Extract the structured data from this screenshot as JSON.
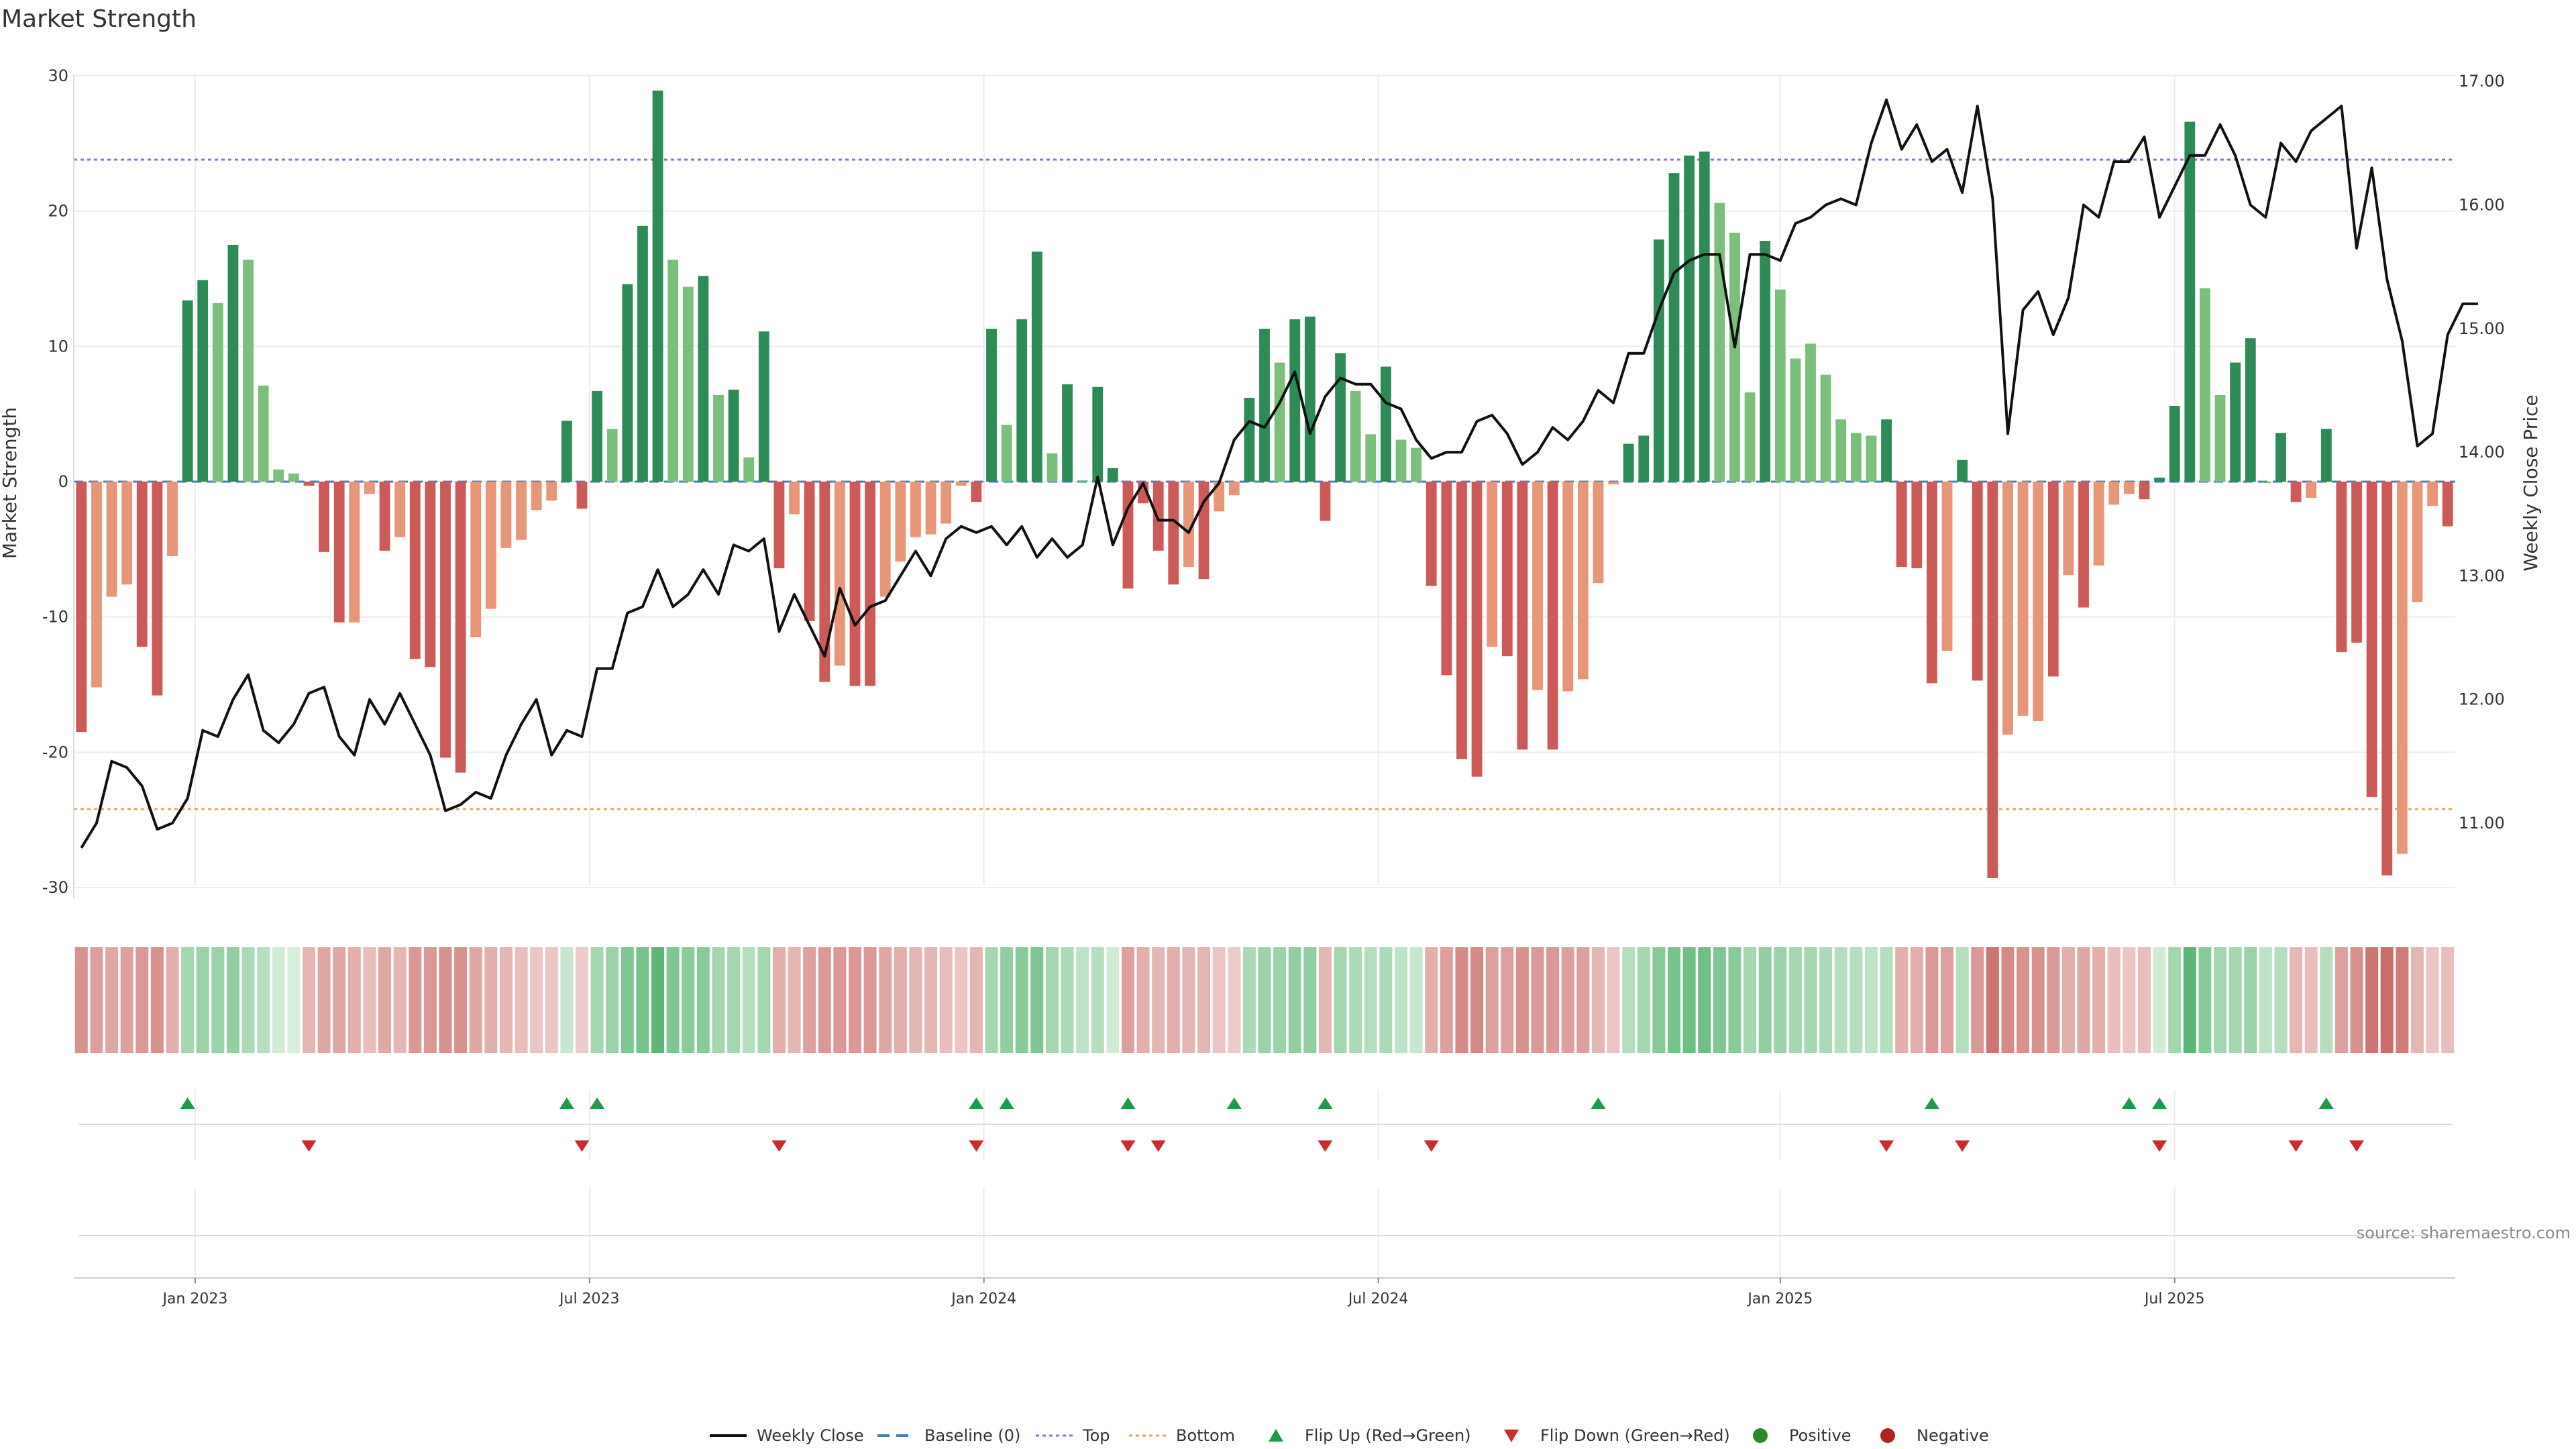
{
  "chart_data": {
    "type": "bar",
    "title": "Market Strength",
    "ylabel": "Market Strength",
    "y2label": "Weekly Close Price",
    "ylim": [
      -31,
      31
    ],
    "y2lim": [
      10.5,
      17.1
    ],
    "yticks": [
      30,
      20,
      10,
      0,
      -10,
      -20,
      -30
    ],
    "y2ticks": [
      "17.00",
      "16.00",
      "15.00",
      "14.00",
      "13.00",
      "12.00",
      "11.00"
    ],
    "y2tick_values": [
      17,
      16,
      15,
      14,
      13,
      12,
      11
    ],
    "xtick_labels": [
      "Jan 2023",
      "Jul 2023",
      "Jan 2024",
      "Jul 2024",
      "Jan 2025",
      "Jul 2025"
    ],
    "xtick_weeks": [
      7.5,
      33.5,
      59.5,
      85.5,
      112,
      138
    ],
    "reference_lines": {
      "top": 23.8,
      "bottom": -24.2,
      "baseline": 0
    },
    "strength": [
      -18.5,
      -15.2,
      -8.5,
      -7.6,
      -12.2,
      -15.8,
      -5.5,
      13.4,
      14.9,
      13.2,
      17.5,
      16.4,
      7.1,
      0.9,
      0.6,
      -0.3,
      -5.2,
      -10.4,
      -10.4,
      -0.9,
      -5.1,
      -4.1,
      -13.1,
      -13.7,
      -20.4,
      -21.5,
      -11.5,
      -9.4,
      -4.9,
      -4.3,
      -2.1,
      -1.4,
      4.5,
      -2.0,
      6.7,
      3.9,
      14.6,
      18.9,
      28.9,
      16.4,
      14.4,
      15.2,
      6.4,
      6.8,
      1.8,
      11.1,
      -6.4,
      -2.4,
      -10.3,
      -14.8,
      -13.6,
      -15.1,
      -15.1,
      -8.5,
      -5.9,
      -4.1,
      -3.9,
      -3.1,
      -0.3,
      -1.5,
      11.3,
      4.2,
      12.0,
      17.0,
      2.1,
      7.2,
      0.1,
      7.0,
      1.0,
      -7.9,
      -1.6,
      -5.1,
      -7.6,
      -6.3,
      -7.2,
      -2.2,
      -1.0,
      6.2,
      11.3,
      8.8,
      12.0,
      12.2,
      -2.9,
      9.5,
      6.7,
      3.5,
      8.5,
      3.1,
      2.5,
      -7.7,
      -14.3,
      -20.5,
      -21.8,
      -12.2,
      -12.9,
      -19.8,
      -15.4,
      -19.8,
      -15.5,
      -14.6,
      -7.5,
      -0.2,
      2.8,
      3.4,
      17.9,
      22.8,
      24.1,
      24.4,
      20.6,
      18.4,
      6.6,
      17.8,
      14.2,
      9.1,
      10.2,
      7.9,
      4.6,
      3.6,
      3.4,
      4.6,
      -6.3,
      -6.4,
      -14.9,
      -12.5,
      1.6,
      -14.7,
      -29.3,
      -18.7,
      -17.3,
      -17.7,
      -14.4,
      -6.9,
      -9.3,
      -6.2,
      -1.7,
      -0.9,
      -1.3,
      0.3,
      5.6,
      26.6,
      14.3,
      6.4,
      8.8,
      10.6,
      -0.1,
      3.6,
      -1.5,
      -1.2,
      3.9,
      -12.6,
      -11.9,
      -23.3,
      -29.1,
      -27.5,
      -8.9,
      -1.8,
      -3.3
    ],
    "bar_shades": [
      "dark-red",
      "light-red",
      "light-red",
      "light-red",
      "dark-red",
      "dark-red",
      "light-red",
      "dark-green",
      "dark-green",
      "light-green",
      "dark-green",
      "light-green",
      "light-green",
      "light-green",
      "light-green",
      "dark-red",
      "dark-red",
      "dark-red",
      "light-red",
      "light-red",
      "dark-red",
      "light-red",
      "dark-red",
      "dark-red",
      "dark-red",
      "dark-red",
      "light-red",
      "light-red",
      "light-red",
      "light-red",
      "light-red",
      "light-red",
      "dark-green",
      "dark-red",
      "dark-green",
      "light-green",
      "dark-green",
      "dark-green",
      "dark-green",
      "light-green",
      "light-green",
      "dark-green",
      "light-green",
      "dark-green",
      "light-green",
      "dark-green",
      "dark-red",
      "light-red",
      "dark-red",
      "dark-red",
      "light-red",
      "dark-red",
      "dark-red",
      "light-red",
      "light-red",
      "light-red",
      "light-red",
      "light-red",
      "light-red",
      "dark-red",
      "dark-green",
      "light-green",
      "dark-green",
      "dark-green",
      "light-green",
      "dark-green",
      "light-green",
      "dark-green",
      "dark-green",
      "dark-red",
      "dark-red",
      "dark-red",
      "dark-red",
      "light-red",
      "dark-red",
      "light-red",
      "light-red",
      "dark-green",
      "dark-green",
      "light-green",
      "dark-green",
      "dark-green",
      "dark-red",
      "dark-green",
      "light-green",
      "light-green",
      "dark-green",
      "light-green",
      "light-green",
      "dark-red",
      "dark-red",
      "dark-red",
      "dark-red",
      "light-red",
      "dark-red",
      "dark-red",
      "light-red",
      "dark-red",
      "light-red",
      "light-red",
      "light-red",
      "light-red",
      "dark-green",
      "dark-green",
      "dark-green",
      "dark-green",
      "dark-green",
      "dark-green",
      "light-green",
      "light-green",
      "light-green",
      "dark-green",
      "light-green",
      "light-green",
      "light-green",
      "light-green",
      "light-green",
      "light-green",
      "light-green",
      "dark-green",
      "dark-red",
      "dark-red",
      "dark-red",
      "light-red",
      "dark-green",
      "dark-red",
      "dark-red",
      "light-red",
      "light-red",
      "light-red",
      "dark-red",
      "light-red",
      "dark-red",
      "light-red",
      "light-red",
      "light-red",
      "dark-red",
      "dark-green",
      "dark-green",
      "dark-green",
      "light-green",
      "light-green",
      "dark-green",
      "dark-green",
      "light-green",
      "dark-green",
      "dark-red",
      "light-red",
      "dark-green",
      "dark-red",
      "dark-red",
      "dark-red",
      "dark-red",
      "light-red",
      "light-red",
      "light-red",
      "dark-red"
    ],
    "heat_strip": [
      0.55,
      0.45,
      0.4,
      0.45,
      0.5,
      0.55,
      0.35,
      0.4,
      0.45,
      0.45,
      0.5,
      0.35,
      0.3,
      0.15,
      0.1,
      0.3,
      0.4,
      0.4,
      0.35,
      0.25,
      0.4,
      0.3,
      0.5,
      0.5,
      0.55,
      0.55,
      0.4,
      0.35,
      0.3,
      0.25,
      0.2,
      0.2,
      0.2,
      0.15,
      0.4,
      0.45,
      0.6,
      0.65,
      0.8,
      0.6,
      0.55,
      0.55,
      0.4,
      0.4,
      0.3,
      0.4,
      0.35,
      0.3,
      0.45,
      0.5,
      0.5,
      0.5,
      0.5,
      0.4,
      0.35,
      0.3,
      0.3,
      0.25,
      0.2,
      0.3,
      0.4,
      0.5,
      0.55,
      0.6,
      0.4,
      0.35,
      0.25,
      0.3,
      0.15,
      0.45,
      0.35,
      0.3,
      0.35,
      0.3,
      0.3,
      0.2,
      0.15,
      0.35,
      0.45,
      0.45,
      0.5,
      0.5,
      0.3,
      0.4,
      0.35,
      0.3,
      0.35,
      0.25,
      0.2,
      0.35,
      0.45,
      0.6,
      0.6,
      0.45,
      0.45,
      0.55,
      0.5,
      0.5,
      0.45,
      0.45,
      0.3,
      0.2,
      0.3,
      0.4,
      0.55,
      0.65,
      0.7,
      0.7,
      0.6,
      0.55,
      0.4,
      0.5,
      0.45,
      0.4,
      0.4,
      0.35,
      0.3,
      0.3,
      0.25,
      0.3,
      0.35,
      0.35,
      0.5,
      0.45,
      0.3,
      0.5,
      0.75,
      0.6,
      0.55,
      0.55,
      0.5,
      0.35,
      0.4,
      0.35,
      0.25,
      0.2,
      0.25,
      0.15,
      0.4,
      0.8,
      0.55,
      0.4,
      0.4,
      0.45,
      0.25,
      0.3,
      0.3,
      0.25,
      0.3,
      0.45,
      0.55,
      0.75,
      0.8,
      0.7,
      0.3,
      0.2,
      0.25
    ],
    "heat_sign": [
      "neg",
      "neg",
      "neg",
      "neg",
      "neg",
      "neg",
      "neg",
      "pos",
      "pos",
      "pos",
      "pos",
      "pos",
      "pos",
      "pos",
      "pos",
      "neg",
      "neg",
      "neg",
      "neg",
      "neg",
      "neg",
      "neg",
      "neg",
      "neg",
      "neg",
      "neg",
      "neg",
      "neg",
      "neg",
      "neg",
      "neg",
      "neg",
      "pos",
      "neg",
      "pos",
      "pos",
      "pos",
      "pos",
      "pos",
      "pos",
      "pos",
      "pos",
      "pos",
      "pos",
      "pos",
      "pos",
      "neg",
      "neg",
      "neg",
      "neg",
      "neg",
      "neg",
      "neg",
      "neg",
      "neg",
      "neg",
      "neg",
      "neg",
      "neg",
      "neg",
      "pos",
      "pos",
      "pos",
      "pos",
      "pos",
      "pos",
      "pos",
      "pos",
      "pos",
      "neg",
      "neg",
      "neg",
      "neg",
      "neg",
      "neg",
      "neg",
      "neg",
      "pos",
      "pos",
      "pos",
      "pos",
      "pos",
      "neg",
      "pos",
      "pos",
      "pos",
      "pos",
      "pos",
      "pos",
      "neg",
      "neg",
      "neg",
      "neg",
      "neg",
      "neg",
      "neg",
      "neg",
      "neg",
      "neg",
      "neg",
      "neg",
      "neg",
      "pos",
      "pos",
      "pos",
      "pos",
      "pos",
      "pos",
      "pos",
      "pos",
      "pos",
      "pos",
      "pos",
      "pos",
      "pos",
      "pos",
      "pos",
      "pos",
      "pos",
      "pos",
      "neg",
      "neg",
      "neg",
      "neg",
      "pos",
      "neg",
      "neg",
      "neg",
      "neg",
      "neg",
      "neg",
      "neg",
      "neg",
      "neg",
      "neg",
      "neg",
      "neg",
      "pos",
      "pos",
      "pos",
      "pos",
      "pos",
      "pos",
      "pos",
      "pos",
      "pos",
      "neg",
      "neg",
      "pos",
      "neg",
      "neg",
      "neg",
      "neg",
      "neg",
      "neg",
      "neg",
      "neg"
    ],
    "weekly_close": [
      10.8,
      11.0,
      11.5,
      11.45,
      11.3,
      10.95,
      11.0,
      11.2,
      11.75,
      11.7,
      12.0,
      12.2,
      11.75,
      11.65,
      11.8,
      12.05,
      12.1,
      11.7,
      11.55,
      12.0,
      11.8,
      12.05,
      11.8,
      11.55,
      11.1,
      11.15,
      11.25,
      11.2,
      11.55,
      11.8,
      12.0,
      11.55,
      11.75,
      11.7,
      12.25,
      12.25,
      12.7,
      12.75,
      13.05,
      12.75,
      12.85,
      13.05,
      12.85,
      13.25,
      13.2,
      13.3,
      12.55,
      12.85,
      12.6,
      12.35,
      12.9,
      12.6,
      12.75,
      12.8,
      13.0,
      13.2,
      13.0,
      13.3,
      13.4,
      13.35,
      13.4,
      13.25,
      13.4,
      13.15,
      13.3,
      13.15,
      13.25,
      13.8,
      13.25,
      13.55,
      13.75,
      13.45,
      13.45,
      13.35,
      13.6,
      13.75,
      14.1,
      14.25,
      14.2,
      14.4,
      14.65,
      14.15,
      14.45,
      14.6,
      14.55,
      14.55,
      14.4,
      14.35,
      14.1,
      13.95,
      14.0,
      14.0,
      14.25,
      14.3,
      14.15,
      13.9,
      14.0,
      14.2,
      14.1,
      14.25,
      14.5,
      14.4,
      14.8,
      14.8,
      15.15,
      15.45,
      15.55,
      15.6,
      15.6,
      14.85,
      15.6,
      15.6,
      15.55,
      15.85,
      15.9,
      16.0,
      16.05,
      16.0,
      16.5,
      16.85,
      16.45,
      16.65,
      16.35,
      16.45,
      16.1,
      16.8,
      16.05,
      14.15,
      15.15,
      15.3,
      14.95,
      15.25,
      16.0,
      15.9,
      16.35,
      16.35,
      16.55,
      15.9,
      16.15,
      16.4,
      16.4,
      16.65,
      16.4,
      16.0,
      15.9,
      16.5,
      16.35,
      16.6,
      16.7,
      16.8,
      15.65,
      16.3,
      15.4,
      14.9,
      14.05,
      14.15,
      14.95,
      15.2,
      15.2
    ],
    "flip_up_weeks": [
      7,
      32,
      34,
      59,
      61,
      69,
      76,
      82,
      100,
      122,
      135,
      137,
      148
    ],
    "flip_down_weeks": [
      15,
      33,
      46,
      59,
      69,
      71,
      82,
      89,
      119,
      124,
      137,
      146,
      150
    ],
    "legend": [
      {
        "label": "Weekly Close",
        "marker": "solid-line"
      },
      {
        "label": "Baseline (0)",
        "marker": "dash-line"
      },
      {
        "label": "Top",
        "marker": "dot-line-purple"
      },
      {
        "label": "Bottom",
        "marker": "dot-line-orange"
      },
      {
        "label": "Flip Up (Red→Green)",
        "marker": "triangle-up"
      },
      {
        "label": "Flip Down (Green→Red)",
        "marker": "triangle-down"
      },
      {
        "label": "Positive",
        "marker": "circle-green"
      },
      {
        "label": "Negative",
        "marker": "circle-red"
      }
    ],
    "source": "source: sharemaestro.com"
  },
  "colors": {
    "dark_green": "#2e8a57",
    "light_green": "#7cbf7c",
    "dark_red": "#cc5a58",
    "light_red": "#e8967a",
    "line": "#111111",
    "top_line": "#9b6fd0",
    "bottom_line": "#e0a860",
    "baseline": "#4a7fb5",
    "flip_up": "#1e9a4a",
    "flip_down": "#cc2b2b",
    "positive": "#2a8a2a",
    "negative": "#b22222",
    "grid": "#ececec"
  }
}
